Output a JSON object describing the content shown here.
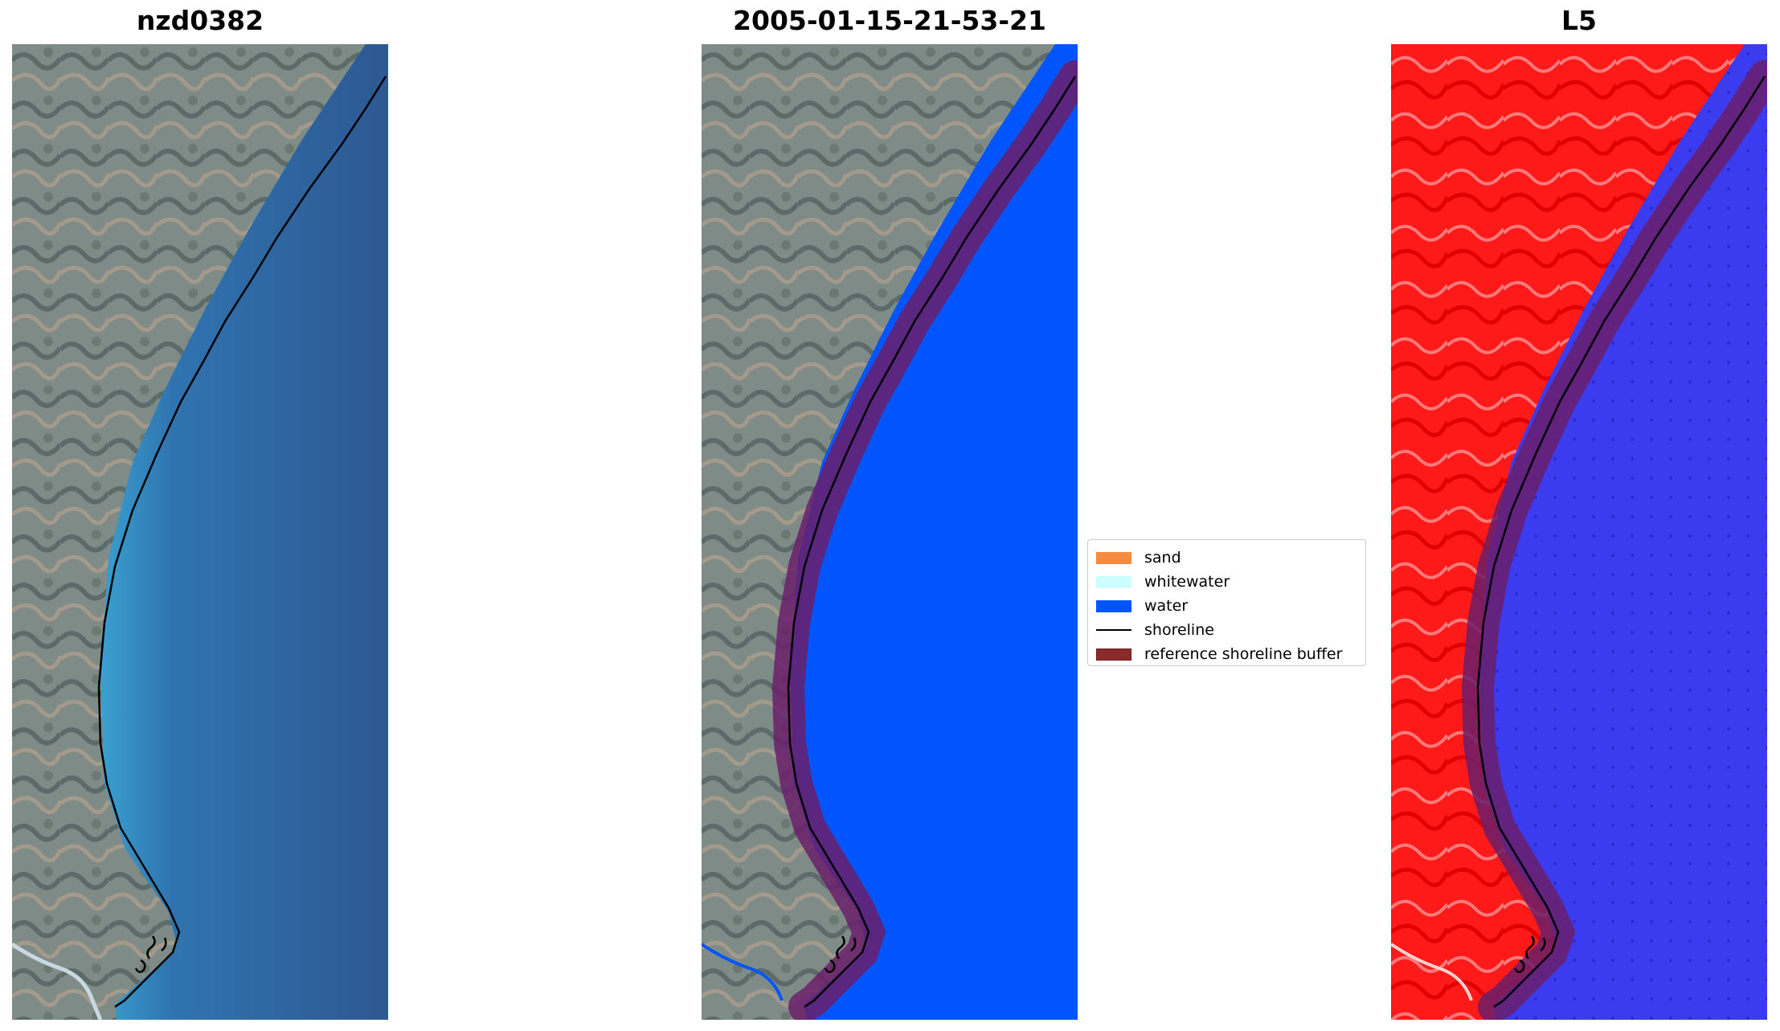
{
  "panels": [
    {
      "title": "nzd0382",
      "type": "rgb-image"
    },
    {
      "title": "2005-01-15-21-53-21",
      "type": "classified-image"
    },
    {
      "title": "L5",
      "type": "mndwi-image"
    }
  ],
  "legend": {
    "items": [
      {
        "label": "sand",
        "color": "#f58b3f"
      },
      {
        "label": "whitewater",
        "color": "#ccffff"
      },
      {
        "label": "water",
        "color": "#0055ff"
      },
      {
        "label": "shoreline",
        "color": "#000000"
      },
      {
        "label": "reference shoreline buffer",
        "color": "#8b2a2a"
      }
    ]
  },
  "colors": {
    "land": "#7e8a88",
    "sea_deep": "#2f5b94",
    "sea_shallow": "#3a8fc4",
    "mndwi_land": "#ff1a1a",
    "mndwi_water": "#3b3bf0",
    "buffer_overlay": "#6a1f6a"
  }
}
